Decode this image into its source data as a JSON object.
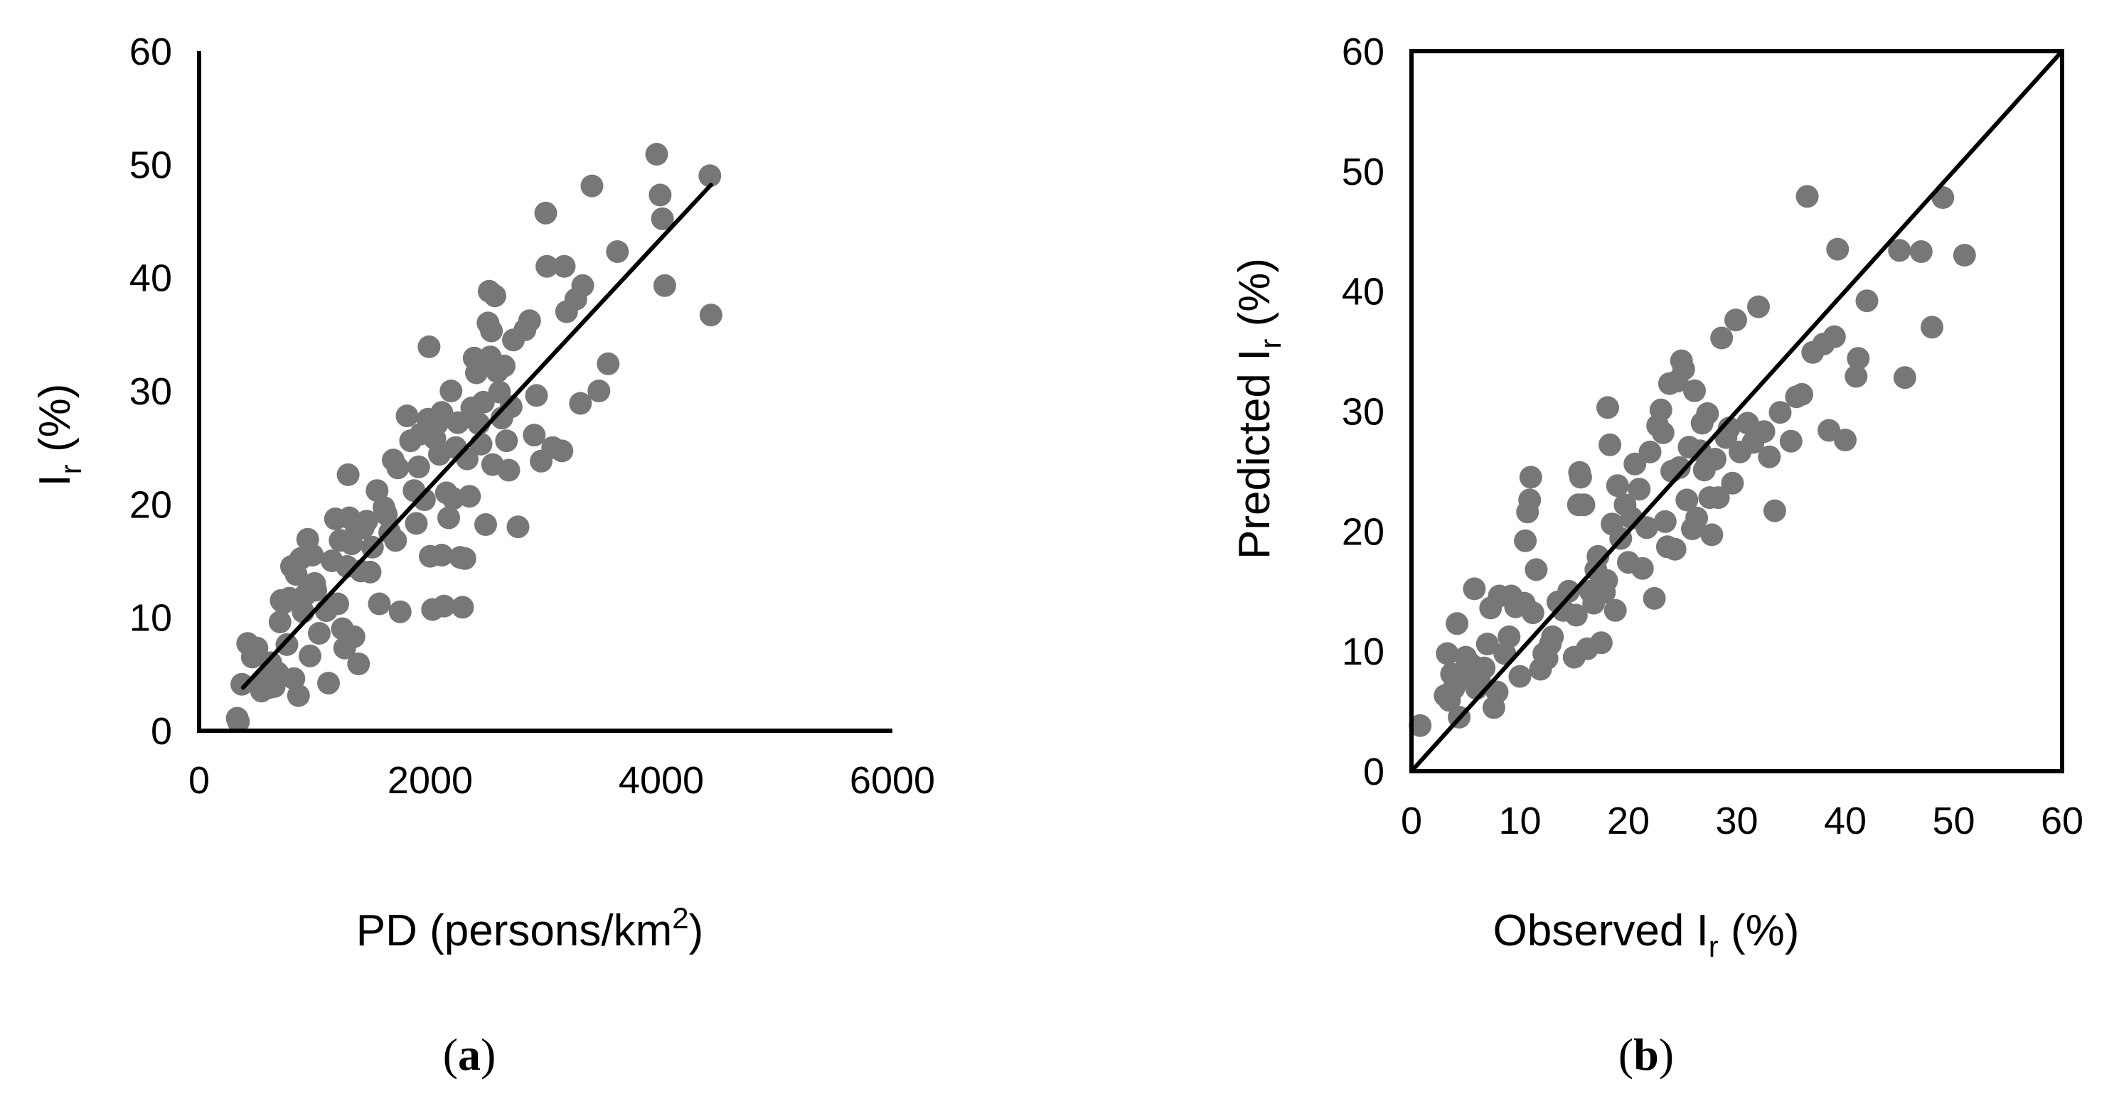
{
  "chart_data": [
    {
      "type": "scatter",
      "title": "",
      "caption": {
        "prefix": "(",
        "letter": "a",
        "suffix": ")"
      },
      "xlabel": {
        "main": "PD (persons/km",
        "sup": "2",
        "end": ")"
      },
      "ylabel": {
        "main": "I",
        "sub": "r",
        "end": " (%)"
      },
      "xlim": [
        0,
        6000
      ],
      "ylim": [
        0,
        60
      ],
      "xticks": [
        0,
        2000,
        4000,
        6000
      ],
      "yticks": [
        0,
        10,
        20,
        30,
        40,
        50,
        60
      ],
      "grid": false,
      "frame": "left-bottom",
      "marker_color": "#777777",
      "line_color": "#000000",
      "fit_line": {
        "x": [
          380,
          4430
        ],
        "y": [
          3.8,
          48.2
        ]
      },
      "points": [
        [
          330,
          1.1
        ],
        [
          340,
          0.8
        ],
        [
          370,
          4.1
        ],
        [
          420,
          7.7
        ],
        [
          460,
          6.5
        ],
        [
          500,
          7.3
        ],
        [
          540,
          3.5
        ],
        [
          560,
          4.4
        ],
        [
          600,
          3.8
        ],
        [
          620,
          6.0
        ],
        [
          650,
          3.9
        ],
        [
          680,
          5.1
        ],
        [
          700,
          9.6
        ],
        [
          710,
          11.5
        ],
        [
          730,
          11.3
        ],
        [
          760,
          7.6
        ],
        [
          780,
          11.7
        ],
        [
          800,
          14.5
        ],
        [
          820,
          4.6
        ],
        [
          840,
          13.8
        ],
        [
          860,
          3.1
        ],
        [
          880,
          15.2
        ],
        [
          900,
          10.5
        ],
        [
          920,
          12.0
        ],
        [
          940,
          16.9
        ],
        [
          960,
          6.6
        ],
        [
          980,
          15.5
        ],
        [
          1000,
          13.0
        ],
        [
          1010,
          12.4
        ],
        [
          1040,
          8.6
        ],
        [
          1100,
          10.6
        ],
        [
          1120,
          4.2
        ],
        [
          1150,
          15.0
        ],
        [
          1180,
          18.7
        ],
        [
          1200,
          11.2
        ],
        [
          1220,
          16.8
        ],
        [
          1240,
          9.0
        ],
        [
          1260,
          7.3
        ],
        [
          1280,
          14.5
        ],
        [
          1290,
          22.6
        ],
        [
          1300,
          18.8
        ],
        [
          1320,
          16.5
        ],
        [
          1340,
          8.3
        ],
        [
          1360,
          18.0
        ],
        [
          1380,
          5.9
        ],
        [
          1400,
          14.1
        ],
        [
          1420,
          17.9
        ],
        [
          1450,
          18.5
        ],
        [
          1480,
          14.0
        ],
        [
          1500,
          16.2
        ],
        [
          1540,
          21.2
        ],
        [
          1560,
          11.2
        ],
        [
          1600,
          19.7
        ],
        [
          1620,
          19.1
        ],
        [
          1650,
          17.5
        ],
        [
          1680,
          23.9
        ],
        [
          1700,
          16.8
        ],
        [
          1720,
          23.2
        ],
        [
          1740,
          10.5
        ],
        [
          1800,
          27.8
        ],
        [
          1830,
          25.6
        ],
        [
          1860,
          21.2
        ],
        [
          1880,
          18.3
        ],
        [
          1900,
          23.3
        ],
        [
          1920,
          26.2
        ],
        [
          1950,
          20.4
        ],
        [
          1980,
          27.5
        ],
        [
          1990,
          33.9
        ],
        [
          2000,
          15.4
        ],
        [
          2020,
          10.7
        ],
        [
          2040,
          25.8
        ],
        [
          2060,
          27.1
        ],
        [
          2080,
          24.4
        ],
        [
          2100,
          15.5
        ],
        [
          2100,
          28.1
        ],
        [
          2120,
          11.0
        ],
        [
          2140,
          21.0
        ],
        [
          2160,
          18.8
        ],
        [
          2180,
          30.0
        ],
        [
          2200,
          20.5
        ],
        [
          2220,
          25.0
        ],
        [
          2240,
          27.2
        ],
        [
          2260,
          15.3
        ],
        [
          2280,
          10.9
        ],
        [
          2300,
          15.2
        ],
        [
          2320,
          24.0
        ],
        [
          2340,
          20.7
        ],
        [
          2360,
          28.5
        ],
        [
          2380,
          32.9
        ],
        [
          2400,
          31.6
        ],
        [
          2420,
          27.1
        ],
        [
          2440,
          25.3
        ],
        [
          2460,
          29.0
        ],
        [
          2480,
          18.2
        ],
        [
          2500,
          36.0
        ],
        [
          2510,
          38.8
        ],
        [
          2520,
          33.0
        ],
        [
          2530,
          35.3
        ],
        [
          2540,
          23.5
        ],
        [
          2560,
          38.4
        ],
        [
          2580,
          31.7
        ],
        [
          2600,
          29.9
        ],
        [
          2620,
          27.6
        ],
        [
          2640,
          32.2
        ],
        [
          2660,
          25.6
        ],
        [
          2680,
          23.0
        ],
        [
          2700,
          28.6
        ],
        [
          2720,
          34.5
        ],
        [
          2760,
          18.0
        ],
        [
          2820,
          35.4
        ],
        [
          2860,
          36.2
        ],
        [
          2900,
          26.1
        ],
        [
          2920,
          29.6
        ],
        [
          2960,
          23.8
        ],
        [
          3000,
          45.7
        ],
        [
          3010,
          41.0
        ],
        [
          3060,
          25.0
        ],
        [
          3140,
          24.7
        ],
        [
          3160,
          41.0
        ],
        [
          3180,
          37.0
        ],
        [
          3260,
          38.1
        ],
        [
          3300,
          28.9
        ],
        [
          3320,
          39.3
        ],
        [
          3400,
          48.1
        ],
        [
          3460,
          30.0
        ],
        [
          3540,
          32.4
        ],
        [
          3620,
          42.3
        ],
        [
          3960,
          50.9
        ],
        [
          3990,
          47.3
        ],
        [
          4010,
          45.2
        ],
        [
          4030,
          39.3
        ],
        [
          4420,
          49.0
        ],
        [
          4430,
          36.7
        ]
      ]
    },
    {
      "type": "scatter",
      "title": "",
      "caption": {
        "prefix": "(",
        "letter": "b",
        "suffix": ")"
      },
      "xlabel": {
        "main": "Observed I",
        "sub": "r",
        "end": " (%)"
      },
      "ylabel": {
        "main": "Predicted I",
        "sub": "r",
        "end": " (%)"
      },
      "xlim": [
        0,
        60
      ],
      "ylim": [
        0,
        60
      ],
      "xticks": [
        0,
        10,
        20,
        30,
        40,
        50,
        60
      ],
      "yticks": [
        0,
        10,
        20,
        30,
        40,
        50,
        60
      ],
      "grid": false,
      "frame": "box",
      "marker_color": "#777777",
      "line_color": "#000000",
      "identity_line": {
        "x": [
          0,
          60
        ],
        "y": [
          0,
          60
        ]
      },
      "points": [
        [
          0.8,
          3.8
        ],
        [
          3.1,
          6.3
        ],
        [
          3.3,
          9.8
        ],
        [
          3.5,
          5.9
        ],
        [
          3.7,
          8.1
        ],
        [
          3.9,
          6.9
        ],
        [
          4.2,
          12.3
        ],
        [
          4.4,
          4.5
        ],
        [
          4.6,
          7.7
        ],
        [
          5.0,
          9.5
        ],
        [
          5.5,
          8.9
        ],
        [
          5.8,
          15.2
        ],
        [
          6.0,
          6.9
        ],
        [
          6.3,
          7.4
        ],
        [
          6.7,
          8.6
        ],
        [
          7.0,
          10.6
        ],
        [
          7.3,
          13.6
        ],
        [
          7.6,
          5.3
        ],
        [
          7.9,
          6.6
        ],
        [
          8.1,
          14.6
        ],
        [
          8.6,
          9.8
        ],
        [
          9.0,
          11.2
        ],
        [
          9.2,
          14.6
        ],
        [
          9.6,
          13.7
        ],
        [
          10.0,
          7.9
        ],
        [
          10.4,
          14.0
        ],
        [
          10.5,
          19.2
        ],
        [
          10.7,
          21.6
        ],
        [
          10.9,
          22.6
        ],
        [
          11.0,
          24.5
        ],
        [
          11.2,
          13.2
        ],
        [
          11.5,
          16.8
        ],
        [
          11.9,
          8.5
        ],
        [
          12.2,
          9.8
        ],
        [
          12.5,
          9.4
        ],
        [
          12.8,
          10.6
        ],
        [
          13.0,
          11.2
        ],
        [
          13.5,
          14.1
        ],
        [
          14.0,
          13.4
        ],
        [
          14.5,
          15.0
        ],
        [
          15.0,
          9.5
        ],
        [
          15.2,
          13.0
        ],
        [
          15.4,
          22.2
        ],
        [
          15.5,
          24.9
        ],
        [
          15.6,
          24.5
        ],
        [
          15.9,
          22.2
        ],
        [
          16.2,
          10.2
        ],
        [
          16.5,
          15.0
        ],
        [
          16.8,
          14.0
        ],
        [
          17.0,
          16.8
        ],
        [
          17.2,
          17.9
        ],
        [
          17.5,
          10.7
        ],
        [
          17.8,
          14.9
        ],
        [
          18.0,
          15.9
        ],
        [
          18.1,
          30.3
        ],
        [
          18.3,
          27.2
        ],
        [
          18.5,
          20.6
        ],
        [
          18.8,
          13.4
        ],
        [
          19.0,
          23.8
        ],
        [
          19.3,
          19.4
        ],
        [
          19.7,
          22.2
        ],
        [
          20.0,
          17.4
        ],
        [
          20.3,
          21.1
        ],
        [
          20.6,
          25.6
        ],
        [
          21.0,
          23.5
        ],
        [
          21.3,
          16.9
        ],
        [
          21.7,
          20.3
        ],
        [
          22.0,
          26.6
        ],
        [
          22.4,
          14.4
        ],
        [
          22.7,
          28.8
        ],
        [
          23.0,
          30.1
        ],
        [
          23.2,
          28.2
        ],
        [
          23.4,
          20.8
        ],
        [
          23.6,
          18.7
        ],
        [
          23.8,
          32.3
        ],
        [
          24.0,
          25.0
        ],
        [
          24.3,
          18.5
        ],
        [
          24.5,
          32.5
        ],
        [
          24.7,
          25.3
        ],
        [
          24.9,
          34.2
        ],
        [
          25.1,
          33.5
        ],
        [
          25.4,
          22.6
        ],
        [
          25.6,
          27.0
        ],
        [
          25.9,
          20.2
        ],
        [
          26.1,
          31.7
        ],
        [
          26.3,
          21.1
        ],
        [
          26.6,
          26.7
        ],
        [
          26.8,
          29.0
        ],
        [
          27.0,
          25.1
        ],
        [
          27.3,
          29.8
        ],
        [
          27.5,
          22.8
        ],
        [
          27.7,
          19.7
        ],
        [
          28.0,
          26.0
        ],
        [
          28.3,
          22.8
        ],
        [
          28.6,
          36.1
        ],
        [
          29.0,
          27.8
        ],
        [
          29.3,
          28.6
        ],
        [
          29.6,
          24.0
        ],
        [
          29.9,
          37.6
        ],
        [
          30.3,
          26.6
        ],
        [
          31.0,
          29.0
        ],
        [
          31.5,
          27.4
        ],
        [
          32.0,
          38.7
        ],
        [
          32.5,
          28.3
        ],
        [
          33.0,
          26.2
        ],
        [
          33.5,
          21.7
        ],
        [
          34.0,
          29.9
        ],
        [
          35.0,
          27.5
        ],
        [
          35.5,
          31.2
        ],
        [
          36.0,
          31.4
        ],
        [
          36.5,
          47.9
        ],
        [
          37.0,
          34.9
        ],
        [
          38.0,
          35.6
        ],
        [
          38.5,
          28.4
        ],
        [
          39.0,
          36.2
        ],
        [
          39.3,
          43.5
        ],
        [
          40.0,
          27.6
        ],
        [
          41.0,
          32.9
        ],
        [
          41.2,
          34.4
        ],
        [
          42.0,
          39.2
        ],
        [
          45.0,
          43.4
        ],
        [
          45.5,
          32.8
        ],
        [
          47.0,
          43.3
        ],
        [
          48.0,
          37.0
        ],
        [
          49.0,
          47.8
        ],
        [
          51.0,
          43.0
        ]
      ]
    }
  ]
}
